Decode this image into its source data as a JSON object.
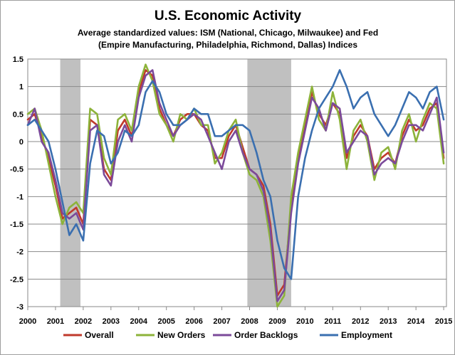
{
  "chart_data": {
    "type": "line",
    "title": "U.S. Economic  Activity",
    "subtitle_lines": [
      "Average standardized values: ISM (National, Chicago, Milwaukee) and Fed",
      "(Empire Manufacturing, Philadelphia, Richmond, Dallas) Indices"
    ],
    "xlabel": "",
    "ylabel": "",
    "xlim": [
      2000,
      2015.1
    ],
    "ylim": [
      -3,
      1.5
    ],
    "x_ticks": [
      2000,
      2001,
      2002,
      2003,
      2004,
      2005,
      2006,
      2007,
      2008,
      2009,
      2010,
      2011,
      2012,
      2013,
      2014,
      2015
    ],
    "y_ticks": [
      -3,
      -2.5,
      -2,
      -1.5,
      -1,
      -0.5,
      0,
      0.5,
      1,
      1.5
    ],
    "grid": "horizontal",
    "legend_position": "bottom",
    "recessions": [
      [
        2001.17,
        2001.9
      ],
      [
        2007.92,
        2009.5
      ]
    ],
    "recession_color": "#c0c0c0",
    "x": [
      2000.0,
      2000.25,
      2000.5,
      2000.75,
      2001.0,
      2001.25,
      2001.5,
      2001.75,
      2002.0,
      2002.25,
      2002.5,
      2002.75,
      2003.0,
      2003.25,
      2003.5,
      2003.75,
      2004.0,
      2004.25,
      2004.5,
      2004.75,
      2005.0,
      2005.25,
      2005.5,
      2005.75,
      2006.0,
      2006.25,
      2006.5,
      2006.75,
      2007.0,
      2007.25,
      2007.5,
      2007.75,
      2008.0,
      2008.25,
      2008.5,
      2008.75,
      2009.0,
      2009.25,
      2009.5,
      2009.75,
      2010.0,
      2010.25,
      2010.5,
      2010.75,
      2011.0,
      2011.25,
      2011.5,
      2011.75,
      2012.0,
      2012.25,
      2012.5,
      2012.75,
      2013.0,
      2013.25,
      2013.5,
      2013.75,
      2014.0,
      2014.25,
      2014.5,
      2014.75,
      2015.0
    ],
    "series": [
      {
        "name": "Overall",
        "color": "#c0392b",
        "values": [
          0.4,
          0.5,
          0.1,
          -0.3,
          -0.8,
          -1.4,
          -1.3,
          -1.2,
          -1.5,
          0.4,
          0.3,
          -0.5,
          -0.7,
          0.2,
          0.4,
          0.1,
          0.9,
          1.3,
          1.2,
          0.6,
          0.3,
          0.1,
          0.4,
          0.5,
          0.5,
          0.3,
          0.2,
          -0.3,
          -0.3,
          0.1,
          0.3,
          -0.1,
          -0.5,
          -0.6,
          -0.8,
          -1.5,
          -2.8,
          -2.6,
          -1.2,
          -0.3,
          0.3,
          0.9,
          0.5,
          0.3,
          0.7,
          0.5,
          -0.3,
          0.1,
          0.3,
          0.1,
          -0.5,
          -0.3,
          -0.2,
          -0.4,
          0.1,
          0.4,
          0.2,
          0.3,
          0.6,
          0.7,
          -0.3
        ]
      },
      {
        "name": "New Orders",
        "color": "#8db33a",
        "values": [
          0.5,
          0.6,
          0.2,
          -0.4,
          -1.0,
          -1.5,
          -1.2,
          -1.1,
          -1.3,
          0.6,
          0.5,
          -0.3,
          -0.6,
          0.4,
          0.5,
          0.2,
          1.0,
          1.4,
          1.1,
          0.5,
          0.3,
          0.0,
          0.5,
          0.4,
          0.6,
          0.3,
          0.3,
          -0.4,
          -0.2,
          0.2,
          0.4,
          -0.2,
          -0.6,
          -0.7,
          -1.0,
          -1.8,
          -3.0,
          -2.8,
          -1.0,
          -0.2,
          0.4,
          1.0,
          0.4,
          0.2,
          0.9,
          0.4,
          -0.5,
          0.2,
          0.4,
          0.0,
          -0.7,
          -0.2,
          -0.1,
          -0.5,
          0.2,
          0.5,
          0.0,
          0.4,
          0.7,
          0.6,
          -0.4
        ]
      },
      {
        "name": "Order Backlogs",
        "color": "#7b4a9a",
        "values": [
          0.3,
          0.6,
          0.0,
          -0.2,
          -0.7,
          -1.3,
          -1.4,
          -1.3,
          -1.6,
          0.2,
          0.3,
          -0.6,
          -0.8,
          0.0,
          0.3,
          0.0,
          0.8,
          1.2,
          1.3,
          0.7,
          0.4,
          0.1,
          0.3,
          0.4,
          0.5,
          0.4,
          0.1,
          -0.2,
          -0.5,
          0.0,
          0.2,
          -0.2,
          -0.5,
          -0.6,
          -0.9,
          -1.6,
          -2.9,
          -2.7,
          -1.3,
          -0.4,
          0.2,
          0.8,
          0.6,
          0.2,
          0.7,
          0.6,
          -0.2,
          0.0,
          0.2,
          0.1,
          -0.6,
          -0.4,
          -0.3,
          -0.4,
          0.0,
          0.3,
          0.3,
          0.2,
          0.5,
          0.8,
          -0.2
        ]
      },
      {
        "name": "Employment",
        "color": "#3a6fb0",
        "values": [
          0.3,
          0.4,
          0.2,
          0.0,
          -0.5,
          -1.1,
          -1.7,
          -1.5,
          -1.8,
          -0.4,
          0.2,
          0.1,
          -0.4,
          -0.2,
          0.2,
          0.1,
          0.3,
          0.9,
          1.1,
          0.9,
          0.5,
          0.3,
          0.3,
          0.4,
          0.6,
          0.5,
          0.5,
          0.1,
          0.1,
          0.2,
          0.3,
          0.3,
          0.2,
          -0.2,
          -0.7,
          -1.0,
          -1.8,
          -2.3,
          -2.5,
          -1.0,
          -0.3,
          0.2,
          0.6,
          0.8,
          1.0,
          1.3,
          1.0,
          0.6,
          0.8,
          0.9,
          0.5,
          0.3,
          0.1,
          0.3,
          0.6,
          0.9,
          0.8,
          0.6,
          0.9,
          1.0,
          0.4
        ]
      }
    ]
  }
}
